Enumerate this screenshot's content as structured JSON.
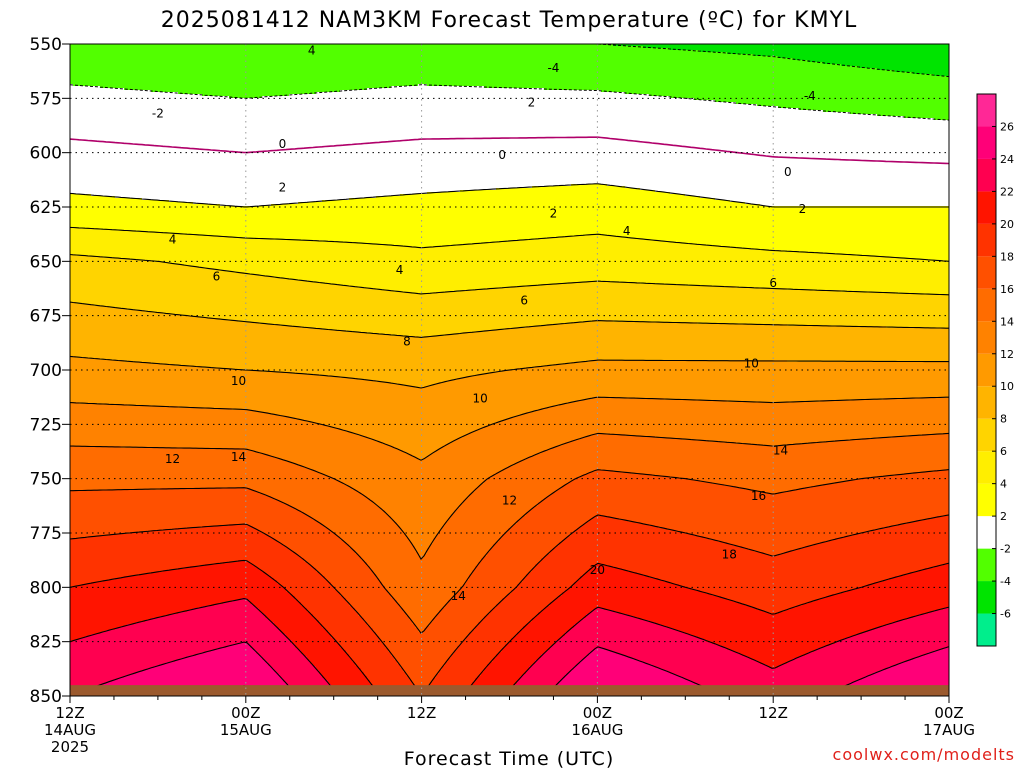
{
  "chart_data": {
    "type": "heatmap",
    "title": "2025081412 NAM3KM Forecast Temperature (ºC) for KMYL",
    "xlabel": "Forecast Time (UTC)",
    "credit": "coolwx.com/modelts",
    "y_axis": {
      "ticks": [
        550,
        575,
        600,
        625,
        650,
        675,
        700,
        725,
        750,
        775,
        800,
        825,
        850
      ],
      "range": [
        550,
        850
      ]
    },
    "x_axis": {
      "range_hours": [
        0,
        60
      ],
      "ticks": [
        {
          "hour": 0,
          "lines": [
            "12Z",
            "14AUG",
            "2025"
          ]
        },
        {
          "hour": 12,
          "lines": [
            "00Z",
            "15AUG"
          ]
        },
        {
          "hour": 24,
          "lines": [
            "12Z"
          ]
        },
        {
          "hour": 36,
          "lines": [
            "00Z",
            "16AUG"
          ]
        },
        {
          "hour": 48,
          "lines": [
            "12Z"
          ]
        },
        {
          "hour": 60,
          "lines": [
            "00Z",
            "17AUG"
          ]
        }
      ]
    },
    "grid": true,
    "surface_pressure": 845,
    "colorbar": {
      "position": "right",
      "bands": [
        {
          "from": -8,
          "to": -6,
          "color": "#00ee8c"
        },
        {
          "from": -6,
          "to": -4,
          "color": "#00e400"
        },
        {
          "from": -4,
          "to": -2,
          "color": "#52ff00"
        },
        {
          "from": -2,
          "to": 2,
          "color": "#ffffff"
        },
        {
          "from": 2,
          "to": 4,
          "color": "#ffff00"
        },
        {
          "from": 4,
          "to": 6,
          "color": "#ffee00"
        },
        {
          "from": 6,
          "to": 8,
          "color": "#ffd400"
        },
        {
          "from": 8,
          "to": 10,
          "color": "#ffb400"
        },
        {
          "from": 10,
          "to": 12,
          "color": "#ff9a00"
        },
        {
          "from": 12,
          "to": 14,
          "color": "#ff8200"
        },
        {
          "from": 14,
          "to": 16,
          "color": "#ff6c00"
        },
        {
          "from": 16,
          "to": 18,
          "color": "#ff5000"
        },
        {
          "from": 18,
          "to": 20,
          "color": "#ff3300"
        },
        {
          "from": 20,
          "to": 22,
          "color": "#ff1400"
        },
        {
          "from": 22,
          "to": 24,
          "color": "#ff0050"
        },
        {
          "from": 24,
          "to": 26,
          "color": "#ff0078"
        },
        {
          "from": 26,
          "to": 28,
          "color": "#ff2896"
        }
      ],
      "tick_labels": [
        "-6",
        "-4",
        "-2",
        "2",
        "4",
        "6",
        "8",
        "10",
        "12",
        "14",
        "16",
        "18",
        "20",
        "22",
        "24",
        "26"
      ]
    },
    "temperature_profile_by_hour": [
      {
        "hour": 0,
        "pressure": [
          550,
          625,
          650,
          700,
          750,
          800,
          850
        ],
        "temp": [
          -3.5,
          2.5,
          6.5,
          10.5,
          15.5,
          20.0,
          24.0
        ]
      },
      {
        "hour": 12,
        "pressure": [
          550,
          625,
          650,
          700,
          750,
          800,
          850
        ],
        "temp": [
          -4.0,
          2.0,
          5.5,
          10.0,
          15.5,
          21.5,
          26.5
        ]
      },
      {
        "hour": 24,
        "pressure": [
          550,
          625,
          650,
          700,
          750,
          800,
          850
        ],
        "temp": [
          -3.5,
          2.5,
          4.5,
          9.5,
          12.5,
          14.5,
          18.0
        ]
      },
      {
        "hour": 36,
        "pressure": [
          550,
          625,
          650,
          700,
          750,
          800,
          850
        ],
        "temp": [
          -4.0,
          3.0,
          5.0,
          10.5,
          16.5,
          21.0,
          26.5
        ]
      },
      {
        "hour": 48,
        "pressure": [
          550,
          625,
          650,
          700,
          750,
          800,
          850
        ],
        "temp": [
          -4.5,
          2.0,
          4.5,
          10.5,
          15.5,
          19.0,
          23.0
        ]
      },
      {
        "hour": 60,
        "pressure": [
          550,
          625,
          650,
          700,
          750,
          800,
          850
        ],
        "temp": [
          -5.5,
          2.0,
          4.0,
          10.5,
          16.5,
          21.0,
          26.5
        ]
      }
    ],
    "contour_labels": [
      {
        "value": 4,
        "text": "4",
        "hour": 16.5,
        "pressure": 553
      },
      {
        "value": -4,
        "text": "-4",
        "hour": 33,
        "pressure": 561
      },
      {
        "value": -4,
        "text": "-4",
        "hour": 50.5,
        "pressure": 574
      },
      {
        "value": -2,
        "text": "-2",
        "hour": 6,
        "pressure": 582
      },
      {
        "value": 2,
        "text": "2",
        "hour": 31.5,
        "pressure": 577
      },
      {
        "value": 0,
        "text": "0",
        "hour": 14.5,
        "pressure": 596
      },
      {
        "value": 0,
        "text": "0",
        "hour": 29.5,
        "pressure": 601
      },
      {
        "value": 0,
        "text": "0",
        "hour": 49,
        "pressure": 609
      },
      {
        "value": 2,
        "text": "2",
        "hour": 14.5,
        "pressure": 616
      },
      {
        "value": 2,
        "text": "2",
        "hour": 33,
        "pressure": 628
      },
      {
        "value": 2,
        "text": "2",
        "hour": 50,
        "pressure": 626
      },
      {
        "value": 4,
        "text": "4",
        "hour": 7,
        "pressure": 640
      },
      {
        "value": 4,
        "text": "4",
        "hour": 22.5,
        "pressure": 654
      },
      {
        "value": 4,
        "text": "4",
        "hour": 38,
        "pressure": 636
      },
      {
        "value": 6,
        "text": "6",
        "hour": 10,
        "pressure": 657
      },
      {
        "value": 6,
        "text": "6",
        "hour": 31,
        "pressure": 668
      },
      {
        "value": 6,
        "text": "6",
        "hour": 48,
        "pressure": 660
      },
      {
        "value": 8,
        "text": "8",
        "hour": 23,
        "pressure": 687
      },
      {
        "value": 10,
        "text": "10",
        "hour": 11.5,
        "pressure": 705
      },
      {
        "value": 10,
        "text": "10",
        "hour": 28,
        "pressure": 713
      },
      {
        "value": 10,
        "text": "10",
        "hour": 46.5,
        "pressure": 697
      },
      {
        "value": 12,
        "text": "12",
        "hour": 7,
        "pressure": 741
      },
      {
        "value": 12,
        "text": "12",
        "hour": 30,
        "pressure": 760
      },
      {
        "value": 14,
        "text": "14",
        "hour": 11.5,
        "pressure": 740
      },
      {
        "value": 14,
        "text": "14",
        "hour": 48.5,
        "pressure": 737
      },
      {
        "value": 14,
        "text": "14",
        "hour": 26.5,
        "pressure": 804
      },
      {
        "value": 16,
        "text": "16",
        "hour": 47,
        "pressure": 758
      },
      {
        "value": 18,
        "text": "18",
        "hour": 45,
        "pressure": 785
      },
      {
        "value": 20,
        "text": "20",
        "hour": 36,
        "pressure": 792
      }
    ]
  }
}
